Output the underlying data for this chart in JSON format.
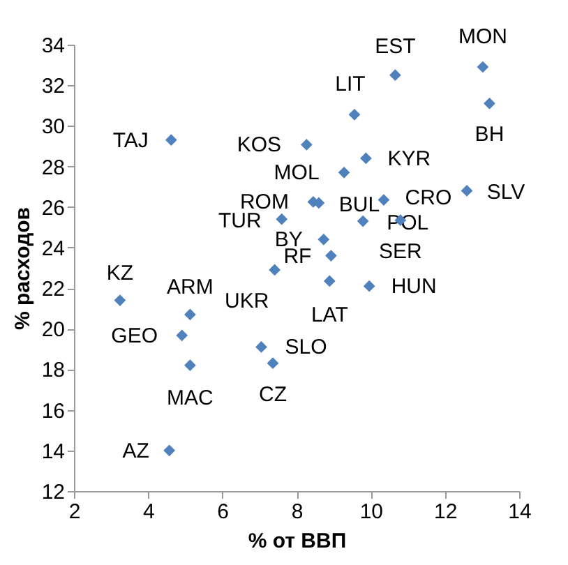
{
  "chart_data": {
    "type": "scatter",
    "xlabel": "% от ВВП",
    "ylabel": "% расходов",
    "x": [
      4.62,
      8.27,
      10.66,
      13.02,
      9.56,
      13.2,
      9.87,
      9.28,
      8.45,
      8.6,
      10.35,
      9.79,
      10.8,
      7.6,
      8.73,
      8.93,
      7.41,
      8.89,
      9.96,
      12.59,
      7.05,
      7.36,
      3.24,
      5.13,
      4.91,
      5.13,
      4.57
    ],
    "series": [
      {
        "color": "#4f81bd",
        "values": [
          29.3,
          29.07,
          32.5,
          32.9,
          30.55,
          31.1,
          28.4,
          27.7,
          26.25,
          26.2,
          26.35,
          25.3,
          25.35,
          25.4,
          24.4,
          23.6,
          22.9,
          22.35,
          22.1,
          26.8,
          19.1,
          18.3,
          21.4,
          20.7,
          19.67,
          18.2,
          14.0
        ]
      }
    ],
    "annotations": [
      {
        "text": "TAJ",
        "x": 4.62,
        "y": 29.3
      },
      {
        "text": "KOS",
        "x": 8.27,
        "y": 29.07
      },
      {
        "text": "EST",
        "x": 10.66,
        "y": 32.5
      },
      {
        "text": "MON",
        "x": 13.02,
        "y": 32.9
      },
      {
        "text": "LIT",
        "x": 9.56,
        "y": 30.55
      },
      {
        "text": "BH",
        "x": 13.2,
        "y": 31.1
      },
      {
        "text": "KYR",
        "x": 9.87,
        "y": 28.4
      },
      {
        "text": "MOL",
        "x": 9.28,
        "y": 27.7
      },
      {
        "text": "ROM",
        "x": 8.45,
        "y": 26.25
      },
      {
        "text": "BUL",
        "x": 8.6,
        "y": 26.2
      },
      {
        "text": "CRO",
        "x": 10.35,
        "y": 26.35
      },
      {
        "text": "POL",
        "x": 9.79,
        "y": 25.3
      },
      {
        "text": "SER",
        "x": 10.8,
        "y": 25.35
      },
      {
        "text": "TUR",
        "x": 7.6,
        "y": 25.4
      },
      {
        "text": "BY",
        "x": 8.73,
        "y": 24.4
      },
      {
        "text": "RF",
        "x": 8.93,
        "y": 23.6
      },
      {
        "text": "UKR",
        "x": 7.41,
        "y": 22.9
      },
      {
        "text": "LAT",
        "x": 8.89,
        "y": 22.35
      },
      {
        "text": "HUN",
        "x": 9.96,
        "y": 22.1
      },
      {
        "text": "SLV",
        "x": 12.59,
        "y": 26.8
      },
      {
        "text": "SLO",
        "x": 7.05,
        "y": 19.1
      },
      {
        "text": "CZ",
        "x": 7.36,
        "y": 18.3
      },
      {
        "text": "KZ",
        "x": 3.24,
        "y": 21.4
      },
      {
        "text": "ARM",
        "x": 5.13,
        "y": 20.7
      },
      {
        "text": "GEO",
        "x": 4.91,
        "y": 19.67
      },
      {
        "text": "MAC",
        "x": 5.13,
        "y": 18.2
      },
      {
        "text": "AZ",
        "x": 4.57,
        "y": 14.0
      }
    ],
    "xlim": [
      2,
      14
    ],
    "xticks": [
      2,
      4,
      6,
      8,
      10,
      12,
      14
    ],
    "ylim": [
      12,
      34
    ],
    "yticks": [
      12,
      14,
      16,
      18,
      20,
      22,
      24,
      26,
      28,
      30,
      32,
      34
    ],
    "marker": "diamond",
    "grid": false
  }
}
